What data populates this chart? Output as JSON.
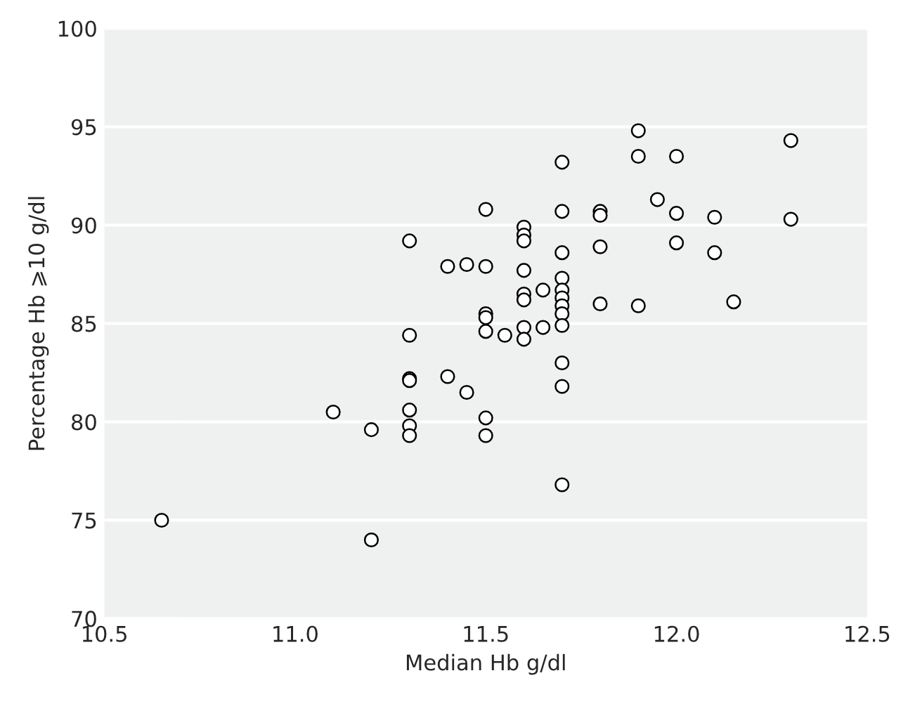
{
  "chart_data": {
    "type": "scatter",
    "xlabel": "Median Hb g/dl",
    "ylabel": "Percentage Hb ⩾10 g/dl",
    "series": [
      {
        "color": "#000000",
        "x": [
          10.65,
          11.2,
          11.1,
          11.2,
          11.3,
          11.3,
          11.3,
          11.3,
          11.3,
          11.3,
          11.3,
          11.4,
          11.4,
          11.45,
          11.45,
          11.5,
          11.5,
          11.5,
          11.5,
          11.5,
          11.5,
          11.5,
          11.55,
          11.6,
          11.6,
          11.6,
          11.6,
          11.6,
          11.6,
          11.6,
          11.6,
          11.65,
          11.65,
          11.7,
          11.7,
          11.7,
          11.7,
          11.7,
          11.7,
          11.7,
          11.7,
          11.7,
          11.7,
          11.7,
          11.7,
          11.8,
          11.8,
          11.8,
          11.8,
          11.9,
          11.9,
          11.9,
          11.95,
          12.0,
          12.0,
          12.0,
          12.1,
          12.1,
          12.15,
          12.3,
          12.3
        ],
        "values": [
          75.0,
          74.0,
          80.5,
          79.6,
          89.2,
          84.4,
          82.2,
          82.1,
          80.6,
          79.8,
          79.3,
          87.9,
          82.3,
          88.0,
          81.5,
          90.8,
          87.9,
          85.5,
          85.3,
          84.6,
          80.2,
          79.3,
          84.4,
          89.9,
          89.5,
          89.2,
          87.7,
          86.5,
          86.2,
          84.8,
          84.2,
          86.7,
          84.8,
          93.2,
          90.7,
          88.6,
          87.3,
          86.7,
          86.3,
          85.9,
          85.5,
          84.9,
          83.0,
          81.8,
          76.8,
          90.7,
          90.5,
          88.9,
          86.0,
          94.8,
          93.5,
          85.9,
          91.3,
          93.5,
          90.6,
          89.1,
          90.4,
          88.6,
          86.1,
          94.3,
          90.3
        ]
      }
    ],
    "xlim": [
      10.5,
      12.5
    ],
    "xticks": [
      10.5,
      {
        "value": 11,
        "label": "11.0"
      },
      11.5,
      {
        "value": 12,
        "label": "12.0"
      },
      12.5
    ],
    "ylim": [
      70,
      100
    ],
    "yticks": [
      70,
      75,
      80,
      85,
      90,
      95,
      100
    ],
    "grid": "y",
    "marker": "circle"
  }
}
